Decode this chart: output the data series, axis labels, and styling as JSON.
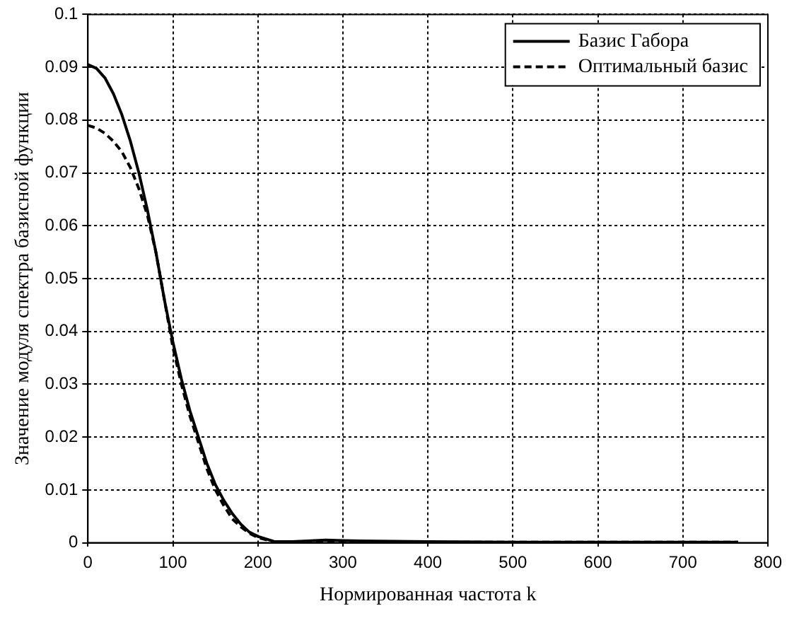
{
  "chart_data": {
    "type": "line",
    "xlabel": "Нормированная частота k",
    "ylabel": "Значение модуля спектра базисной функции",
    "xlim": [
      0,
      800
    ],
    "xticks": [
      0,
      100,
      200,
      300,
      400,
      500,
      600,
      700,
      800
    ],
    "ylim": [
      0,
      0.1
    ],
    "yticks": [
      0,
      0.01,
      0.02,
      0.03,
      0.04,
      0.05,
      0.06,
      0.07,
      0.08,
      0.09,
      0.1
    ],
    "grid": true,
    "legend": "top right",
    "marker": "none",
    "series": [
      {
        "name": "Базис Габора",
        "color": "#000000",
        "line_style": "solid",
        "x": [
          0,
          10,
          20,
          30,
          40,
          50,
          60,
          70,
          80,
          90,
          100,
          110,
          120,
          130,
          140,
          150,
          160,
          170,
          180,
          190,
          200,
          220,
          240,
          280,
          300,
          400,
          500,
          600,
          765
        ],
        "values": [
          0.0905,
          0.0898,
          0.088,
          0.085,
          0.081,
          0.076,
          0.07,
          0.063,
          0.055,
          0.046,
          0.038,
          0.031,
          0.025,
          0.02,
          0.015,
          0.011,
          0.008,
          0.0055,
          0.0035,
          0.002,
          0.0012,
          0.0002,
          0.0002,
          0.0005,
          0.0004,
          0.0002,
          0.0001,
          0.0001,
          0.0001
        ]
      },
      {
        "name": "Оптимальный базис",
        "color": "#000000",
        "line_style": "dashed",
        "x": [
          0,
          10,
          20,
          30,
          40,
          50,
          60,
          70,
          80,
          90,
          100,
          110,
          120,
          130,
          140,
          150,
          160,
          170,
          180,
          190,
          200,
          220,
          240,
          300,
          400,
          765
        ],
        "values": [
          0.079,
          0.0785,
          0.0775,
          0.076,
          0.074,
          0.071,
          0.067,
          0.062,
          0.055,
          0.046,
          0.037,
          0.03,
          0.024,
          0.019,
          0.014,
          0.01,
          0.007,
          0.0045,
          0.003,
          0.0018,
          0.001,
          0.0001,
          0.0001,
          0.0002,
          0.0001,
          0.0001
        ]
      }
    ]
  }
}
